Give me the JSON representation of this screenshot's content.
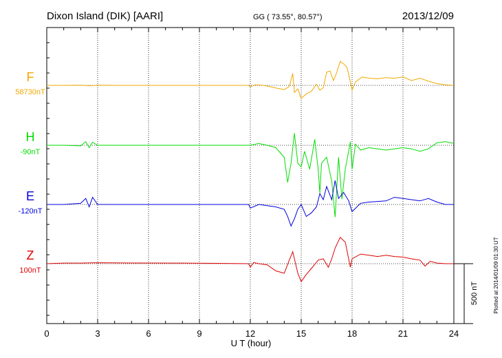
{
  "header": {
    "station": "Dixon Island (DIK)  [AARI]",
    "coords": "GG ( 73.55°,  80.57°)",
    "date": "2013/12/09"
  },
  "side_note": "Plotted at 2014/01/09 01:30 UT",
  "scale_bar_label": "500 nT",
  "chart_data": {
    "type": "line",
    "xlabel": "U T (hour)",
    "xlim": [
      0,
      24
    ],
    "x_ticks": [
      0,
      3,
      6,
      9,
      12,
      15,
      18,
      21,
      24
    ],
    "grid": true,
    "scale_bar_nT": 500,
    "series": [
      {
        "name": "F",
        "baseline_label": "58730nT",
        "color": "#f0a800",
        "points": [
          [
            0,
            0
          ],
          [
            1,
            0
          ],
          [
            2,
            2
          ],
          [
            2.5,
            -3
          ],
          [
            3,
            1
          ],
          [
            4,
            0
          ],
          [
            6,
            0
          ],
          [
            8,
            0
          ],
          [
            10,
            0
          ],
          [
            11.9,
            0
          ],
          [
            12,
            -12
          ],
          [
            12.3,
            5
          ],
          [
            12.8,
            0
          ],
          [
            13.6,
            -25
          ],
          [
            14,
            -35
          ],
          [
            14.3,
            -10
          ],
          [
            14.5,
            100
          ],
          [
            14.6,
            -60
          ],
          [
            14.8,
            -30
          ],
          [
            15,
            -110
          ],
          [
            15.3,
            -70
          ],
          [
            15.6,
            -50
          ],
          [
            15.9,
            10
          ],
          [
            16.1,
            -40
          ],
          [
            16.3,
            -20
          ],
          [
            16.5,
            110
          ],
          [
            16.7,
            120
          ],
          [
            16.9,
            40
          ],
          [
            17.1,
            110
          ],
          [
            17.3,
            200
          ],
          [
            17.5,
            180
          ],
          [
            17.7,
            150
          ],
          [
            17.9,
            30
          ],
          [
            18,
            -40
          ],
          [
            18.2,
            30
          ],
          [
            18.6,
            70
          ],
          [
            19,
            60
          ],
          [
            19.5,
            55
          ],
          [
            20,
            65
          ],
          [
            20.5,
            60
          ],
          [
            21,
            70
          ],
          [
            21.5,
            40
          ],
          [
            22,
            60
          ],
          [
            22.5,
            35
          ],
          [
            23,
            15
          ],
          [
            23.5,
            5
          ],
          [
            24,
            0
          ]
        ]
      },
      {
        "name": "H",
        "baseline_label": "-90nT",
        "color": "#00dd00",
        "points": [
          [
            0,
            0
          ],
          [
            1,
            0
          ],
          [
            2,
            -5
          ],
          [
            2.3,
            30
          ],
          [
            2.5,
            -20
          ],
          [
            2.7,
            25
          ],
          [
            3,
            0
          ],
          [
            5,
            0
          ],
          [
            8,
            0
          ],
          [
            10,
            0
          ],
          [
            12,
            0
          ],
          [
            12.5,
            15
          ],
          [
            13,
            0
          ],
          [
            13.5,
            -20
          ],
          [
            14,
            -100
          ],
          [
            14.2,
            -310
          ],
          [
            14.4,
            -150
          ],
          [
            14.6,
            100
          ],
          [
            14.8,
            -150
          ],
          [
            15,
            -180
          ],
          [
            15.2,
            -50
          ],
          [
            15.5,
            -200
          ],
          [
            15.8,
            50
          ],
          [
            16,
            -200
          ],
          [
            16.1,
            -400
          ],
          [
            16.2,
            -150
          ],
          [
            16.5,
            -100
          ],
          [
            16.8,
            -300
          ],
          [
            17,
            -600
          ],
          [
            17.2,
            -100
          ],
          [
            17.4,
            -450
          ],
          [
            17.6,
            -200
          ],
          [
            17.9,
            30
          ],
          [
            18,
            -200
          ],
          [
            18.2,
            10
          ],
          [
            18.5,
            -40
          ],
          [
            19,
            -20
          ],
          [
            20,
            -40
          ],
          [
            21,
            -20
          ],
          [
            21.5,
            -30
          ],
          [
            22,
            -50
          ],
          [
            22.5,
            -30
          ],
          [
            23,
            20
          ],
          [
            23.5,
            30
          ],
          [
            24,
            15
          ]
        ]
      },
      {
        "name": "E",
        "baseline_label": "-120nT",
        "color": "#0000dd",
        "points": [
          [
            0,
            0
          ],
          [
            1,
            0
          ],
          [
            2,
            10
          ],
          [
            2.3,
            50
          ],
          [
            2.5,
            -20
          ],
          [
            2.7,
            60
          ],
          [
            3,
            0
          ],
          [
            5,
            0
          ],
          [
            8,
            0
          ],
          [
            10,
            0
          ],
          [
            11.9,
            0
          ],
          [
            12,
            -30
          ],
          [
            12.5,
            0
          ],
          [
            13,
            -10
          ],
          [
            13.5,
            -20
          ],
          [
            14,
            -40
          ],
          [
            14.2,
            -100
          ],
          [
            14.4,
            -180
          ],
          [
            14.6,
            -120
          ],
          [
            14.8,
            -40
          ],
          [
            15,
            0
          ],
          [
            15.3,
            -100
          ],
          [
            15.6,
            -70
          ],
          [
            15.9,
            -20
          ],
          [
            16.1,
            90
          ],
          [
            16.3,
            40
          ],
          [
            16.5,
            150
          ],
          [
            16.8,
            40
          ],
          [
            17,
            200
          ],
          [
            17.2,
            50
          ],
          [
            17.5,
            100
          ],
          [
            17.8,
            30
          ],
          [
            18,
            -60
          ],
          [
            18.5,
            10
          ],
          [
            19,
            20
          ],
          [
            20,
            30
          ],
          [
            20.5,
            60
          ],
          [
            21,
            50
          ],
          [
            21.5,
            40
          ],
          [
            22,
            30
          ],
          [
            22.5,
            50
          ],
          [
            23,
            20
          ],
          [
            23.5,
            0
          ],
          [
            24,
            0
          ]
        ]
      },
      {
        "name": "Z",
        "baseline_label": "100nT",
        "color": "#dd0000",
        "points": [
          [
            0,
            0
          ],
          [
            1,
            5
          ],
          [
            2,
            5
          ],
          [
            3,
            8
          ],
          [
            5,
            6
          ],
          [
            8,
            5
          ],
          [
            10,
            3
          ],
          [
            11.9,
            0
          ],
          [
            12,
            -30
          ],
          [
            12.2,
            10
          ],
          [
            12.5,
            0
          ],
          [
            13,
            -10
          ],
          [
            13.5,
            -60
          ],
          [
            14,
            -80
          ],
          [
            14.3,
            30
          ],
          [
            14.5,
            100
          ],
          [
            14.8,
            -80
          ],
          [
            15,
            -150
          ],
          [
            15.3,
            -90
          ],
          [
            15.6,
            -40
          ],
          [
            16,
            30
          ],
          [
            16.3,
            40
          ],
          [
            16.6,
            -30
          ],
          [
            16.8,
            40
          ],
          [
            17,
            130
          ],
          [
            17.3,
            220
          ],
          [
            17.6,
            180
          ],
          [
            17.9,
            -30
          ],
          [
            18,
            40
          ],
          [
            18.5,
            80
          ],
          [
            19,
            70
          ],
          [
            19.5,
            60
          ],
          [
            20,
            70
          ],
          [
            20.5,
            60
          ],
          [
            21,
            55
          ],
          [
            21.5,
            40
          ],
          [
            22,
            30
          ],
          [
            22.3,
            -20
          ],
          [
            22.6,
            20
          ],
          [
            23,
            5
          ],
          [
            23.5,
            0
          ],
          [
            24,
            0
          ]
        ]
      }
    ]
  }
}
